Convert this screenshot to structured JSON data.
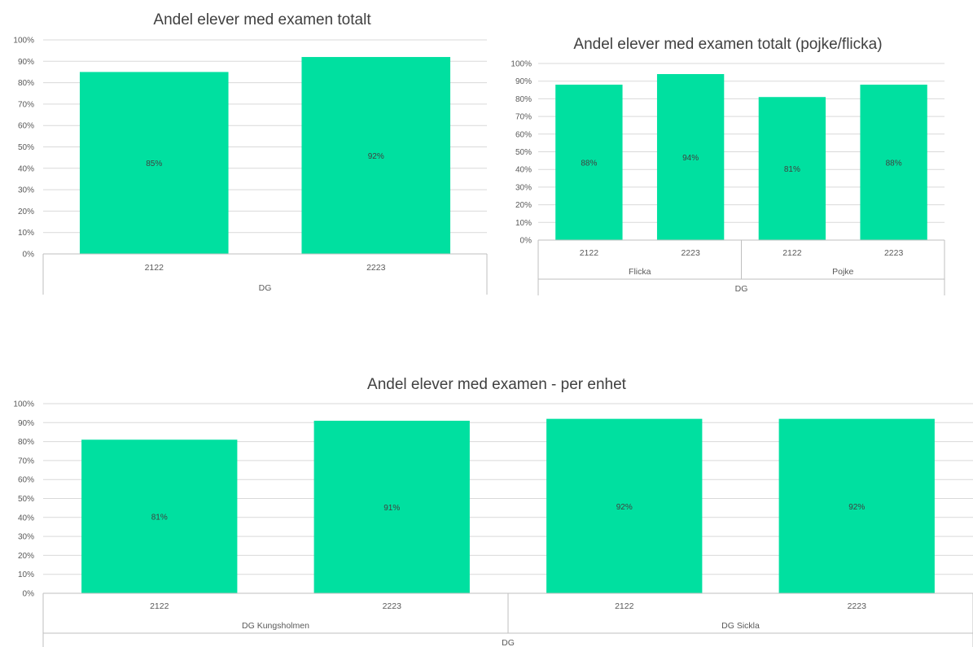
{
  "chart_data": [
    {
      "type": "bar",
      "title": "Andel elever med examen totalt",
      "y_ticks": [
        "0%",
        "10%",
        "20%",
        "30%",
        "40%",
        "50%",
        "60%",
        "70%",
        "80%",
        "90%",
        "100%"
      ],
      "ylim": [
        0,
        100
      ],
      "grid": true,
      "bar_color": "#00e0a0",
      "categories": [
        "2122",
        "2223"
      ],
      "groups": [
        {
          "label": "DG",
          "span": 2
        }
      ],
      "top_groups": [],
      "values": [
        85,
        92
      ],
      "data_labels": [
        "85%",
        "92%"
      ]
    },
    {
      "type": "bar",
      "title": "Andel elever med examen totalt (pojke/flicka)",
      "y_ticks": [
        "0%",
        "10%",
        "20%",
        "30%",
        "40%",
        "50%",
        "60%",
        "70%",
        "80%",
        "90%",
        "100%"
      ],
      "ylim": [
        0,
        100
      ],
      "grid": true,
      "bar_color": "#00e0a0",
      "categories": [
        "2122",
        "2223",
        "2122",
        "2223"
      ],
      "groups": [
        {
          "label": "Flicka",
          "span": 2
        },
        {
          "label": "Pojke",
          "span": 2
        }
      ],
      "top_groups": [
        {
          "label": "DG",
          "span": 4
        }
      ],
      "values": [
        88,
        94,
        81,
        88
      ],
      "data_labels": [
        "88%",
        "94%",
        "81%",
        "88%"
      ]
    },
    {
      "type": "bar",
      "title": "Andel elever med examen - per enhet",
      "y_ticks": [
        "0%",
        "10%",
        "20%",
        "30%",
        "40%",
        "50%",
        "60%",
        "70%",
        "80%",
        "90%",
        "100%"
      ],
      "ylim": [
        0,
        100
      ],
      "grid": true,
      "bar_color": "#00e0a0",
      "categories": [
        "2122",
        "2223",
        "2122",
        "2223"
      ],
      "groups": [
        {
          "label": "DG Kungsholmen",
          "span": 2
        },
        {
          "label": "DG Sickla",
          "span": 2
        }
      ],
      "top_groups": [
        {
          "label": "DG",
          "span": 4
        }
      ],
      "values": [
        81,
        91,
        92,
        92
      ],
      "data_labels": [
        "81%",
        "91%",
        "92%",
        "92%"
      ]
    }
  ]
}
